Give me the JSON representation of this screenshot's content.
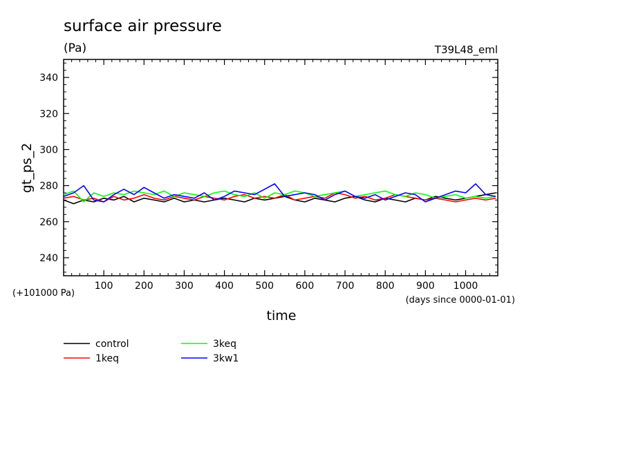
{
  "chart_data": {
    "type": "line",
    "title": "surface air pressure",
    "units": "(Pa)",
    "experiment": "T39L48_eml",
    "ylabel": "gt_ps_2",
    "xlabel": "time",
    "x_unit_note": "(days since 0000-01-01)",
    "y_offset_note": "(+101000 Pa)",
    "xlim": [
      0,
      1080
    ],
    "ylim": [
      230,
      350
    ],
    "x_ticks": [
      "100",
      "200",
      "300",
      "400",
      "500",
      "600",
      "700",
      "800",
      "900",
      "1000"
    ],
    "y_ticks": [
      "240",
      "260",
      "280",
      "300",
      "320",
      "340"
    ],
    "grid": false,
    "legend_position": "below",
    "series": [
      {
        "name": "control",
        "color": "#000000",
        "x": [
          0,
          25,
          50,
          75,
          100,
          125,
          150,
          175,
          200,
          225,
          250,
          275,
          300,
          325,
          350,
          375,
          400,
          425,
          450,
          475,
          500,
          525,
          550,
          575,
          600,
          625,
          650,
          675,
          700,
          725,
          750,
          775,
          800,
          825,
          850,
          875,
          900,
          925,
          950,
          975,
          1000,
          1025,
          1050,
          1075
        ],
        "values": [
          272,
          270,
          272,
          271,
          273,
          272,
          274,
          271,
          273,
          272,
          271,
          273,
          271,
          272,
          271,
          272,
          273,
          272,
          271,
          273,
          272,
          273,
          274,
          272,
          271,
          273,
          272,
          271,
          273,
          274,
          272,
          271,
          273,
          272,
          271,
          273,
          272,
          274,
          273,
          272,
          273,
          274,
          275,
          276
        ]
      },
      {
        "name": "1keq",
        "color": "#ff0000",
        "x": [
          0,
          25,
          50,
          75,
          100,
          125,
          150,
          175,
          200,
          225,
          250,
          275,
          300,
          325,
          350,
          375,
          400,
          425,
          450,
          475,
          500,
          525,
          550,
          575,
          600,
          625,
          650,
          675,
          700,
          725,
          750,
          775,
          800,
          825,
          850,
          875,
          900,
          925,
          950,
          975,
          1000,
          1025,
          1050,
          1075
        ],
        "values": [
          273,
          274,
          272,
          273,
          271,
          274,
          272,
          273,
          275,
          273,
          272,
          274,
          273,
          272,
          274,
          273,
          272,
          274,
          275,
          273,
          274,
          273,
          275,
          272,
          273,
          274,
          273,
          276,
          275,
          273,
          274,
          272,
          273,
          275,
          274,
          273,
          272,
          273,
          272,
          271,
          272,
          273,
          272,
          273
        ]
      },
      {
        "name": "3keq",
        "color": "#00ff00",
        "x": [
          0,
          25,
          50,
          75,
          100,
          125,
          150,
          175,
          200,
          225,
          250,
          275,
          300,
          325,
          350,
          375,
          400,
          425,
          450,
          475,
          500,
          525,
          550,
          575,
          600,
          625,
          650,
          675,
          700,
          725,
          750,
          775,
          800,
          825,
          850,
          875,
          900,
          925,
          950,
          975,
          1000,
          1025,
          1050,
          1075
        ],
        "values": [
          275,
          277,
          271,
          276,
          274,
          276,
          275,
          277,
          276,
          275,
          277,
          274,
          276,
          275,
          274,
          276,
          277,
          275,
          274,
          276,
          273,
          276,
          275,
          277,
          276,
          274,
          275,
          276,
          277,
          274,
          275,
          276,
          277,
          275,
          274,
          276,
          275,
          273,
          274,
          275,
          273,
          274,
          273,
          274
        ]
      },
      {
        "name": "3kw1",
        "color": "#0000ff",
        "x": [
          0,
          25,
          50,
          75,
          100,
          125,
          150,
          175,
          200,
          225,
          250,
          275,
          300,
          325,
          350,
          375,
          400,
          425,
          450,
          475,
          500,
          525,
          550,
          575,
          600,
          625,
          650,
          675,
          700,
          725,
          750,
          775,
          800,
          825,
          850,
          875,
          900,
          925,
          950,
          975,
          1000,
          1025,
          1050,
          1075
        ],
        "values": [
          274,
          276,
          280,
          272,
          271,
          275,
          278,
          275,
          279,
          276,
          273,
          275,
          274,
          273,
          276,
          272,
          274,
          277,
          276,
          275,
          278,
          281,
          274,
          275,
          276,
          275,
          272,
          275,
          277,
          274,
          273,
          275,
          272,
          274,
          276,
          275,
          271,
          273,
          275,
          277,
          276,
          281,
          275,
          274
        ]
      }
    ]
  }
}
